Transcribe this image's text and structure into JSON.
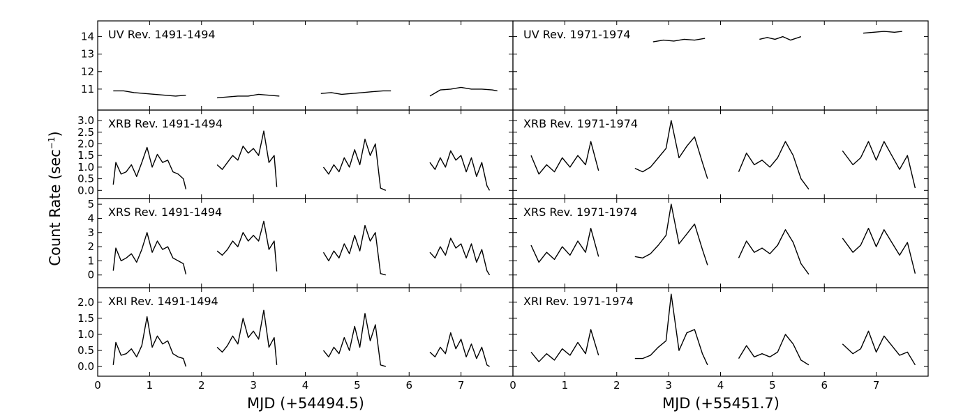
{
  "chart_data": {
    "type": "line",
    "ylabel_main": "Count Rate (sec",
    "ylabel_sup": "−1",
    "ylabel_close": ")",
    "line_color": "#000000",
    "columns": [
      {
        "xlabel": "MJD (+54494.5)",
        "xlim": [
          0,
          8
        ],
        "xticks": [
          "0",
          "1",
          "2",
          "3",
          "4",
          "5",
          "6",
          "7"
        ]
      },
      {
        "xlabel": "MJD (+55451.7)",
        "xlim": [
          0,
          8
        ],
        "xticks": [
          "0",
          "1",
          "2",
          "3",
          "4",
          "5",
          "6",
          "7"
        ]
      }
    ],
    "rows": [
      {
        "band": "UV",
        "ylim": [
          9.8,
          14.9
        ],
        "yticks": [
          "11",
          "12",
          "13",
          "14"
        ]
      },
      {
        "band": "XRB",
        "ylim": [
          -0.35,
          3.45
        ],
        "yticks": [
          "0.0",
          "0.5",
          "1.0",
          "1.5",
          "2.0",
          "2.5",
          "3.0"
        ]
      },
      {
        "band": "XRS",
        "ylim": [
          -0.9,
          5.4
        ],
        "yticks": [
          "0",
          "1",
          "2",
          "3",
          "4",
          "5"
        ]
      },
      {
        "band": "XRI",
        "ylim": [
          -0.3,
          2.45
        ],
        "yticks": [
          "0.0",
          "0.5",
          "1.0",
          "1.5",
          "2.0"
        ]
      }
    ],
    "panels": [
      {
        "label": "UV Rev. 1491-1494",
        "segments": [
          {
            "x": [
              0.3,
              0.5,
              0.7,
              0.9,
              1.1,
              1.3,
              1.5,
              1.7
            ],
            "y": [
              10.9,
              10.9,
              10.8,
              10.75,
              10.7,
              10.65,
              10.6,
              10.65
            ]
          },
          {
            "x": [
              2.3,
              2.5,
              2.7,
              2.9,
              3.1,
              3.3,
              3.5
            ],
            "y": [
              10.5,
              10.55,
              10.6,
              10.6,
              10.7,
              10.65,
              10.6
            ]
          },
          {
            "x": [
              4.3,
              4.5,
              4.7,
              4.9,
              5.1,
              5.3,
              5.5,
              5.65
            ],
            "y": [
              10.75,
              10.8,
              10.7,
              10.75,
              10.8,
              10.85,
              10.9,
              10.9
            ]
          },
          {
            "x": [
              6.4,
              6.6,
              6.8,
              7.0,
              7.2,
              7.4,
              7.6,
              7.7
            ],
            "y": [
              10.6,
              10.95,
              11.0,
              11.1,
              11.0,
              11.0,
              10.95,
              10.9
            ]
          }
        ]
      },
      {
        "label": "UV Rev. 1971-1974",
        "segments": [
          {
            "x": [
              2.7,
              2.9,
              3.1,
              3.3,
              3.5,
              3.7
            ],
            "y": [
              13.7,
              13.8,
              13.75,
              13.85,
              13.8,
              13.9
            ]
          },
          {
            "x": [
              4.75,
              4.9,
              5.05,
              5.2,
              5.35,
              5.55
            ],
            "y": [
              13.85,
              13.95,
              13.85,
              14.0,
              13.8,
              14.0
            ]
          },
          {
            "x": [
              6.75,
              6.95,
              7.15,
              7.35,
              7.5
            ],
            "y": [
              14.2,
              14.25,
              14.3,
              14.25,
              14.3
            ]
          }
        ]
      },
      {
        "label": "XRB Rev. 1491-1494",
        "segments": [
          {
            "x": [
              0.3,
              0.35,
              0.45,
              0.55,
              0.65,
              0.75,
              0.85,
              0.95,
              1.05,
              1.15,
              1.25,
              1.35,
              1.45,
              1.55,
              1.65,
              1.7
            ],
            "y": [
              0.25,
              1.2,
              0.7,
              0.8,
              1.1,
              0.6,
              1.2,
              1.85,
              1.0,
              1.55,
              1.2,
              1.3,
              0.8,
              0.7,
              0.5,
              0.05
            ]
          },
          {
            "x": [
              2.3,
              2.4,
              2.5,
              2.6,
              2.7,
              2.8,
              2.9,
              3.0,
              3.1,
              3.2,
              3.3,
              3.4,
              3.45
            ],
            "y": [
              1.1,
              0.9,
              1.2,
              1.5,
              1.3,
              1.9,
              1.6,
              1.8,
              1.5,
              2.55,
              1.2,
              1.5,
              0.15
            ]
          },
          {
            "x": [
              4.35,
              4.45,
              4.55,
              4.65,
              4.75,
              4.85,
              4.95,
              5.05,
              5.15,
              5.25,
              5.35,
              5.45,
              5.55
            ],
            "y": [
              1.0,
              0.7,
              1.1,
              0.8,
              1.4,
              1.0,
              1.75,
              1.1,
              2.2,
              1.5,
              2.0,
              0.1,
              0.0
            ]
          },
          {
            "x": [
              6.4,
              6.5,
              6.6,
              6.7,
              6.8,
              6.9,
              7.0,
              7.1,
              7.2,
              7.3,
              7.4,
              7.5,
              7.55
            ],
            "y": [
              1.2,
              0.9,
              1.4,
              1.0,
              1.7,
              1.3,
              1.5,
              0.8,
              1.4,
              0.6,
              1.2,
              0.2,
              0.0
            ]
          }
        ]
      },
      {
        "label": "XRB Rev. 1971-1974",
        "segments": [
          {
            "x": [
              0.35,
              0.5,
              0.65,
              0.8,
              0.95,
              1.1,
              1.25,
              1.4,
              1.5,
              1.65
            ],
            "y": [
              1.5,
              0.7,
              1.1,
              0.8,
              1.4,
              1.0,
              1.5,
              1.1,
              2.1,
              0.85
            ]
          },
          {
            "x": [
              2.35,
              2.5,
              2.65,
              2.8,
              2.95,
              3.05,
              3.2,
              3.35,
              3.5,
              3.65,
              3.75
            ],
            "y": [
              0.95,
              0.8,
              1.0,
              1.4,
              1.8,
              3.0,
              1.4,
              1.9,
              2.3,
              1.2,
              0.5
            ]
          },
          {
            "x": [
              4.35,
              4.5,
              4.65,
              4.8,
              4.95,
              5.1,
              5.25,
              5.4,
              5.55,
              5.7
            ],
            "y": [
              0.8,
              1.6,
              1.1,
              1.3,
              1.0,
              1.4,
              2.1,
              1.5,
              0.5,
              0.05
            ]
          },
          {
            "x": [
              6.35,
              6.55,
              6.7,
              6.85,
              7.0,
              7.15,
              7.3,
              7.45,
              7.6,
              7.75
            ],
            "y": [
              1.7,
              1.1,
              1.4,
              2.1,
              1.3,
              2.1,
              1.5,
              0.9,
              1.5,
              0.1
            ]
          }
        ]
      },
      {
        "label": "XRS Rev. 1491-1494",
        "segments": [
          {
            "x": [
              0.3,
              0.35,
              0.45,
              0.55,
              0.65,
              0.75,
              0.85,
              0.95,
              1.05,
              1.15,
              1.25,
              1.35,
              1.45,
              1.55,
              1.65,
              1.7
            ],
            "y": [
              0.3,
              1.9,
              1.0,
              1.2,
              1.5,
              0.9,
              1.8,
              3.0,
              1.6,
              2.4,
              1.8,
              2.0,
              1.2,
              1.0,
              0.8,
              0.05
            ]
          },
          {
            "x": [
              2.3,
              2.4,
              2.5,
              2.6,
              2.7,
              2.8,
              2.9,
              3.0,
              3.1,
              3.2,
              3.3,
              3.4,
              3.45
            ],
            "y": [
              1.7,
              1.4,
              1.8,
              2.4,
              2.0,
              3.0,
              2.4,
              2.8,
              2.4,
              3.8,
              1.8,
              2.4,
              0.25
            ]
          },
          {
            "x": [
              4.35,
              4.45,
              4.55,
              4.65,
              4.75,
              4.85,
              4.95,
              5.05,
              5.15,
              5.25,
              5.35,
              5.45,
              5.55
            ],
            "y": [
              1.6,
              1.0,
              1.7,
              1.2,
              2.2,
              1.5,
              2.8,
              1.7,
              3.5,
              2.4,
              3.0,
              0.1,
              0.0
            ]
          },
          {
            "x": [
              6.4,
              6.5,
              6.6,
              6.7,
              6.8,
              6.9,
              7.0,
              7.1,
              7.2,
              7.3,
              7.4,
              7.5,
              7.55
            ],
            "y": [
              1.6,
              1.2,
              2.0,
              1.4,
              2.6,
              1.9,
              2.2,
              1.2,
              2.2,
              0.9,
              1.8,
              0.3,
              0.0
            ]
          }
        ]
      },
      {
        "label": "XRS Rev. 1971-1974",
        "segments": [
          {
            "x": [
              0.35,
              0.5,
              0.65,
              0.8,
              0.95,
              1.1,
              1.25,
              1.4,
              1.5,
              1.65
            ],
            "y": [
              2.1,
              0.9,
              1.6,
              1.1,
              2.0,
              1.4,
              2.4,
              1.6,
              3.3,
              1.3
            ]
          },
          {
            "x": [
              2.35,
              2.5,
              2.65,
              2.8,
              2.95,
              3.05,
              3.2,
              3.35,
              3.5,
              3.65,
              3.75
            ],
            "y": [
              1.3,
              1.2,
              1.5,
              2.1,
              2.8,
              5.0,
              2.2,
              2.9,
              3.6,
              1.8,
              0.7
            ]
          },
          {
            "x": [
              4.35,
              4.5,
              4.65,
              4.8,
              4.95,
              5.1,
              5.25,
              5.4,
              5.55,
              5.7
            ],
            "y": [
              1.2,
              2.4,
              1.6,
              1.9,
              1.5,
              2.1,
              3.2,
              2.3,
              0.8,
              0.05
            ]
          },
          {
            "x": [
              6.35,
              6.55,
              6.7,
              6.85,
              7.0,
              7.15,
              7.3,
              7.45,
              7.6,
              7.75
            ],
            "y": [
              2.6,
              1.6,
              2.1,
              3.3,
              2.0,
              3.2,
              2.3,
              1.4,
              2.3,
              0.1
            ]
          }
        ]
      },
      {
        "label": "XRI Rev. 1491-1494",
        "segments": [
          {
            "x": [
              0.3,
              0.35,
              0.45,
              0.55,
              0.65,
              0.75,
              0.85,
              0.95,
              1.05,
              1.15,
              1.25,
              1.35,
              1.45,
              1.55,
              1.65,
              1.7
            ],
            "y": [
              0.05,
              0.75,
              0.35,
              0.4,
              0.55,
              0.3,
              0.65,
              1.55,
              0.6,
              0.95,
              0.7,
              0.8,
              0.4,
              0.3,
              0.25,
              0.0
            ]
          },
          {
            "x": [
              2.3,
              2.4,
              2.5,
              2.6,
              2.7,
              2.8,
              2.9,
              3.0,
              3.1,
              3.2,
              3.3,
              3.4,
              3.45
            ],
            "y": [
              0.6,
              0.45,
              0.65,
              0.95,
              0.7,
              1.5,
              0.9,
              1.1,
              0.85,
              1.75,
              0.6,
              0.9,
              0.05
            ]
          },
          {
            "x": [
              4.35,
              4.45,
              4.55,
              4.65,
              4.75,
              4.85,
              4.95,
              5.05,
              5.15,
              5.25,
              5.35,
              5.45,
              5.55
            ],
            "y": [
              0.5,
              0.3,
              0.6,
              0.4,
              0.9,
              0.5,
              1.25,
              0.6,
              1.65,
              0.8,
              1.3,
              0.05,
              0.0
            ]
          },
          {
            "x": [
              6.4,
              6.5,
              6.6,
              6.7,
              6.8,
              6.9,
              7.0,
              7.1,
              7.2,
              7.3,
              7.4,
              7.5,
              7.55
            ],
            "y": [
              0.45,
              0.3,
              0.6,
              0.4,
              1.05,
              0.55,
              0.85,
              0.3,
              0.7,
              0.25,
              0.6,
              0.05,
              0.0
            ]
          }
        ]
      },
      {
        "label": "XRI Rev. 1971-1974",
        "segments": [
          {
            "x": [
              0.35,
              0.5,
              0.65,
              0.8,
              0.95,
              1.1,
              1.25,
              1.4,
              1.5,
              1.65
            ],
            "y": [
              0.45,
              0.15,
              0.4,
              0.2,
              0.55,
              0.35,
              0.75,
              0.4,
              1.15,
              0.35
            ]
          },
          {
            "x": [
              2.35,
              2.5,
              2.65,
              2.8,
              2.95,
              3.05,
              3.2,
              3.35,
              3.5,
              3.65,
              3.75
            ],
            "y": [
              0.25,
              0.25,
              0.35,
              0.6,
              0.8,
              2.25,
              0.5,
              1.05,
              1.15,
              0.4,
              0.05
            ]
          },
          {
            "x": [
              4.35,
              4.5,
              4.65,
              4.8,
              4.95,
              5.1,
              5.25,
              5.4,
              5.55,
              5.7
            ],
            "y": [
              0.25,
              0.65,
              0.3,
              0.4,
              0.3,
              0.45,
              1.0,
              0.7,
              0.2,
              0.05
            ]
          },
          {
            "x": [
              6.35,
              6.55,
              6.7,
              6.85,
              7.0,
              7.15,
              7.3,
              7.45,
              7.6,
              7.75
            ],
            "y": [
              0.7,
              0.4,
              0.55,
              1.1,
              0.45,
              0.95,
              0.65,
              0.35,
              0.45,
              0.05
            ]
          }
        ]
      }
    ]
  }
}
